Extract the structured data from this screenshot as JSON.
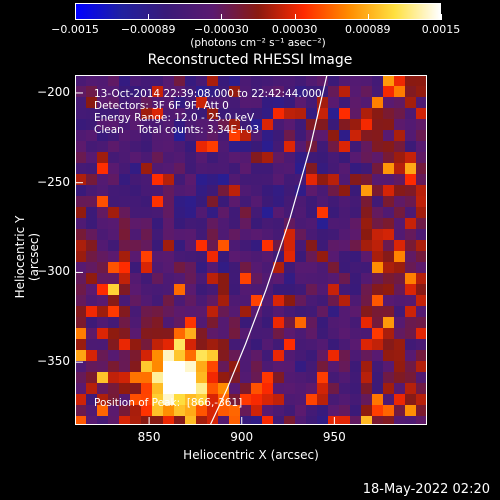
{
  "title": "Reconstructed RHESSI Image",
  "colorbar": {
    "ticks": [
      "−0.0015",
      "−0.00089",
      "−0.00030",
      "0.00030",
      "0.00089",
      "0.0015"
    ],
    "unit_label": "(photons cm⁻² s⁻¹ asec⁻²)",
    "colors": [
      "#0000ff",
      "#2020a0",
      "#3a1a78",
      "#5a1a70",
      "#8a1a10",
      "#ff2a00",
      "#ff8c00",
      "#ffe040",
      "#ffffff"
    ]
  },
  "info": {
    "time_range": "13-Oct-2014 22:39:08.000 to 22:42:44.000",
    "detectors": "Detectors: 3F 6F 9F, Att 0",
    "energy_range": "Energy Range: 12.0 - 25.0 keV",
    "method_counts": "Clean    Total counts: 3.34E+03",
    "peak_position": "Position of Peak:  [866,-361]"
  },
  "footer_date": "18-May-2022 02:20",
  "chart_data": {
    "type": "heatmap",
    "title": "Reconstructed RHESSI Image",
    "xlabel": "Heliocentric X (arcsec)",
    "ylabel": "Heliocentric Y (arcsec)",
    "xlim": [
      810,
      1000
    ],
    "ylim": [
      -385,
      -190
    ],
    "xticks": [
      850,
      900,
      950
    ],
    "yticks": [
      -200,
      -250,
      -300,
      -350
    ],
    "colorbar_range": [
      -0.0015,
      0.0015
    ],
    "peak": {
      "x": 866,
      "y": -361
    },
    "limb_curve": {
      "x": [
        946,
        937,
        926,
        913,
        902,
        892,
        883
      ],
      "y": [
        -190,
        -230,
        -270,
        -310,
        -340,
        -365,
        -385
      ]
    }
  }
}
